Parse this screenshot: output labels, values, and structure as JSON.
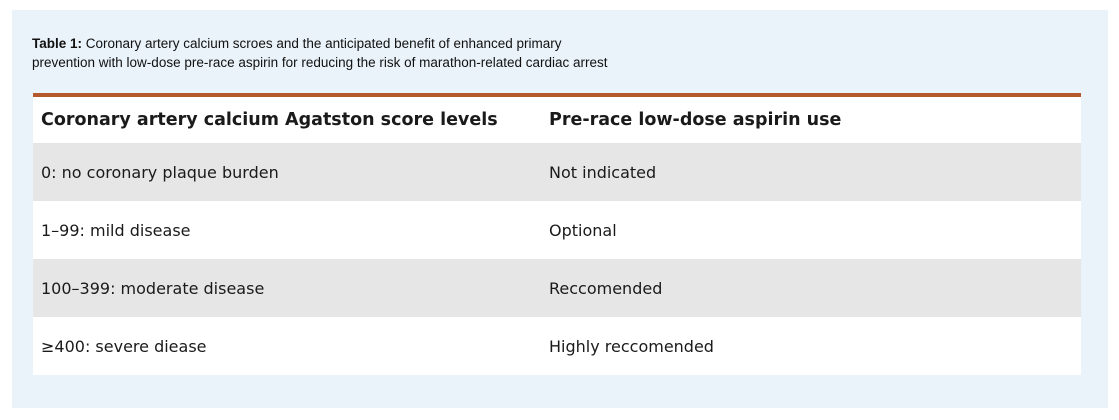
{
  "caption": {
    "label": "Table 1:",
    "text": " Coronary artery calcium scroes and the anticipated benefit of enhanced primary",
    "text_line2": "prevention with low-dose pre-race aspirin for reducing the risk of marathon-related cardiac arrest"
  },
  "table": {
    "headers": [
      "Coronary artery calcium Agatston score levels",
      "Pre-race low-dose aspirin use"
    ],
    "rows": [
      [
        "0: no coronary plaque burden",
        "Not indicated"
      ],
      [
        "1–99: mild disease",
        "Optional"
      ],
      [
        "100–399: moderate disease",
        "Reccomended"
      ],
      [
        "≥400: severe diease",
        "Highly reccomended"
      ]
    ]
  },
  "colors": {
    "header_rule": "#b5582b",
    "panel_background": "#eaf3fa",
    "shaded_row": "#e6e6e6"
  }
}
